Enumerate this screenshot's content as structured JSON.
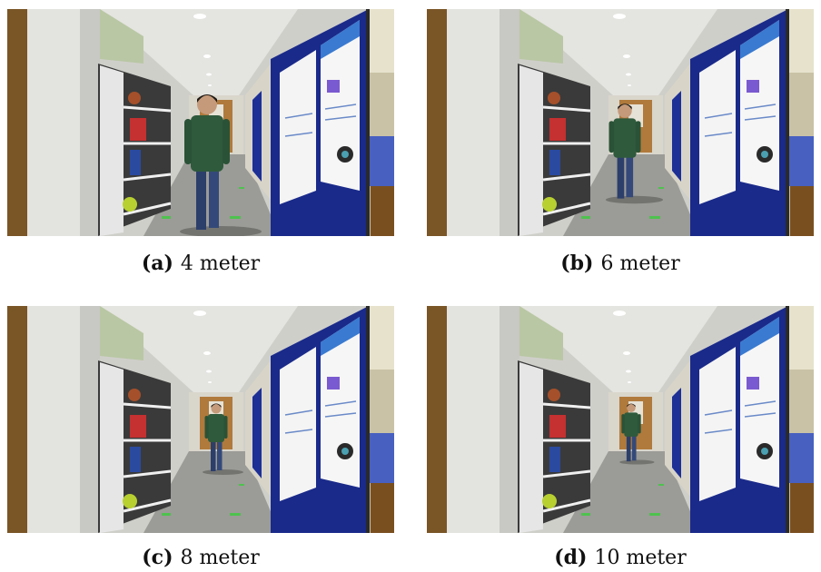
{
  "panels": [
    {
      "label": "(a)",
      "caption": "4 meter"
    },
    {
      "label": "(b)",
      "caption": "6 meter"
    },
    {
      "label": "(c)",
      "caption": "8 meter"
    },
    {
      "label": "(d)",
      "caption": "10 meter"
    }
  ]
}
